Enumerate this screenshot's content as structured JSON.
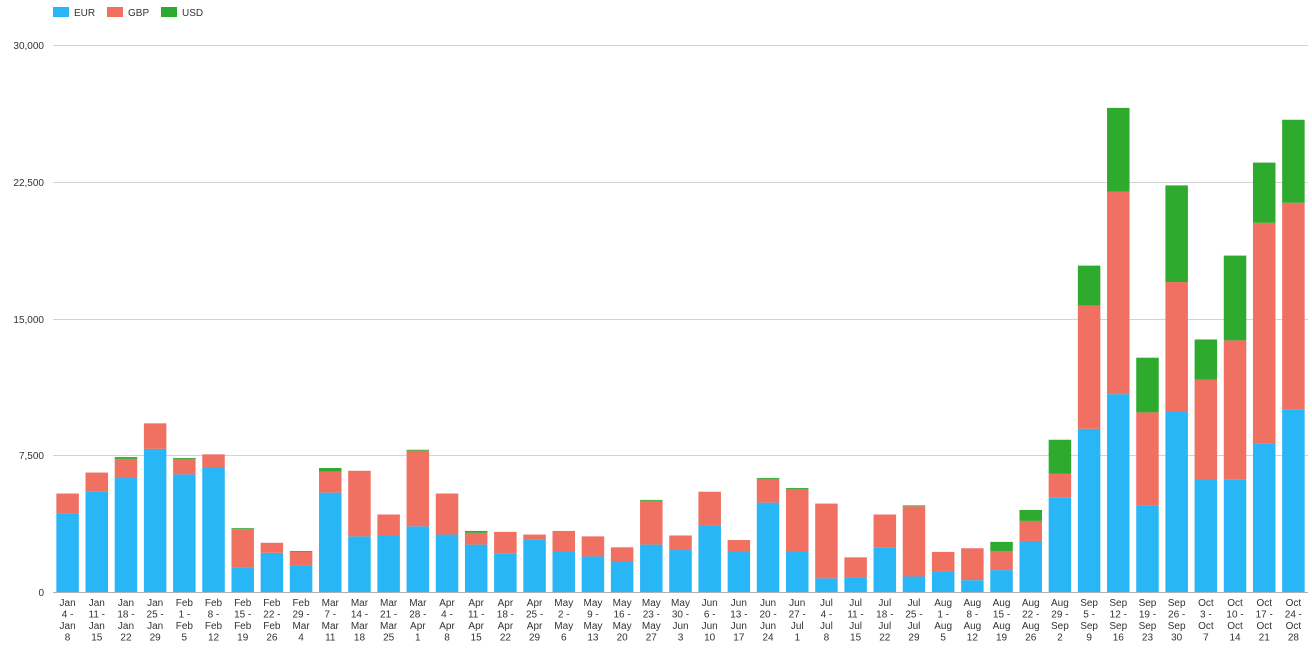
{
  "chart_data": {
    "type": "bar",
    "stacked": true,
    "title": "",
    "xlabel": "",
    "ylabel": "",
    "ylim": [
      0,
      30000
    ],
    "y_ticks": [
      "0",
      "7,500",
      "15,000",
      "22,500",
      "30,000"
    ],
    "y_tick_values": [
      0,
      7500,
      15000,
      22500,
      30000
    ],
    "grid": true,
    "legend_position": "top-left",
    "categories": [
      "Jan 4 - Jan 8",
      "Jan 11 - Jan 15",
      "Jan 18 - Jan 22",
      "Jan 25 - Jan 29",
      "Feb 1 - Feb 5",
      "Feb 8 - Feb 12",
      "Feb 15 - Feb 19",
      "Feb 22 - Feb 26",
      "Feb 29 - Mar 4",
      "Mar 7 - Mar 11",
      "Mar 14 - Mar 18",
      "Mar 21 - Mar 25",
      "Mar 28 - Apr 1",
      "Apr 4 - Apr 8",
      "Apr 11 - Apr 15",
      "Apr 18 - Apr 22",
      "Apr 25 - Apr 29",
      "May 2 - May 6",
      "May 9 - May 13",
      "May 16 - May 20",
      "May 23 - May 27",
      "May 30 - Jun 3",
      "Jun 6 - Jun 10",
      "Jun 13 - Jun 17",
      "Jun 20 - Jun 24",
      "Jun 27 - Jul 1",
      "Jul 4 - Jul 8",
      "Jul 11 - Jul 15",
      "Jul 18 - Jul 22",
      "Jul 25 - Jul 29",
      "Aug 1 - Aug 5",
      "Aug 8 - Aug 12",
      "Aug 15 - Aug 19",
      "Aug 22 - Aug 26",
      "Aug 29 - Sep 2",
      "Sep 5 - Sep 9",
      "Sep 12 - Sep 16",
      "Sep 19 - Sep 23",
      "Sep 26 - Sep 30",
      "Oct 3 - Oct 7",
      "Oct 10 - Oct 14",
      "Oct 17 - Oct 21",
      "Oct 24 - Oct 28"
    ],
    "category_lines": [
      [
        "Jan",
        "4 -",
        "Jan",
        "8"
      ],
      [
        "Jan",
        "11 -",
        "Jan",
        "15"
      ],
      [
        "Jan",
        "18 -",
        "Jan",
        "22"
      ],
      [
        "Jan",
        "25 -",
        "Jan",
        "29"
      ],
      [
        "Feb",
        "1 -",
        "Feb",
        "5"
      ],
      [
        "Feb",
        "8 -",
        "Feb",
        "12"
      ],
      [
        "Feb",
        "15 -",
        "Feb",
        "19"
      ],
      [
        "Feb",
        "22 -",
        "Feb",
        "26"
      ],
      [
        "Feb",
        "29 -",
        "Mar",
        "4"
      ],
      [
        "Mar",
        "7 -",
        "Mar",
        "11"
      ],
      [
        "Mar",
        "14 -",
        "Mar",
        "18"
      ],
      [
        "Mar",
        "21 -",
        "Mar",
        "25"
      ],
      [
        "Mar",
        "28 -",
        "Apr",
        "1"
      ],
      [
        "Apr",
        "4 -",
        "Apr",
        "8"
      ],
      [
        "Apr",
        "11 -",
        "Apr",
        "15"
      ],
      [
        "Apr",
        "18 -",
        "Apr",
        "22"
      ],
      [
        "Apr",
        "25 -",
        "Apr",
        "29"
      ],
      [
        "May",
        "2 -",
        "May",
        "6"
      ],
      [
        "May",
        "9 -",
        "May",
        "13"
      ],
      [
        "May",
        "16 -",
        "May",
        "20"
      ],
      [
        "May",
        "23 -",
        "May",
        "27"
      ],
      [
        "May",
        "30 -",
        "Jun",
        "3"
      ],
      [
        "Jun",
        "6 -",
        "Jun",
        "10"
      ],
      [
        "Jun",
        "13 -",
        "Jun",
        "17"
      ],
      [
        "Jun",
        "20 -",
        "Jun",
        "24"
      ],
      [
        "Jun",
        "27 -",
        "Jul",
        "1"
      ],
      [
        "Jul",
        "4 -",
        "Jul",
        "8"
      ],
      [
        "Jul",
        "11 -",
        "Jul",
        "15"
      ],
      [
        "Jul",
        "18 -",
        "Jul",
        "22"
      ],
      [
        "Jul",
        "25 -",
        "Jul",
        "29"
      ],
      [
        "Aug",
        "1 -",
        "Aug",
        "5"
      ],
      [
        "Aug",
        "8 -",
        "Aug",
        "12"
      ],
      [
        "Aug",
        "15 -",
        "Aug",
        "19"
      ],
      [
        "Aug",
        "22 -",
        "Aug",
        "26"
      ],
      [
        "Aug",
        "29 -",
        "Sep",
        "2"
      ],
      [
        "Sep",
        "5 -",
        "Sep",
        "9"
      ],
      [
        "Sep",
        "12 -",
        "Sep",
        "16"
      ],
      [
        "Sep",
        "19 -",
        "Sep",
        "23"
      ],
      [
        "Sep",
        "26 -",
        "Sep",
        "30"
      ],
      [
        "Oct",
        "3 -",
        "Oct",
        "7"
      ],
      [
        "Oct",
        "10 -",
        "Oct",
        "14"
      ],
      [
        "Oct",
        "17 -",
        "Oct",
        "21"
      ],
      [
        "Oct",
        "24 -",
        "Oct",
        "28"
      ]
    ],
    "series": [
      {
        "name": "EUR",
        "color": "#29b6f6",
        "values": [
          4300,
          5500,
          6250,
          7850,
          6450,
          6800,
          1350,
          2150,
          1450,
          5450,
          3050,
          3100,
          3600,
          3150,
          2600,
          2100,
          2900,
          2250,
          1950,
          1700,
          2600,
          2300,
          3650,
          2250,
          4900,
          2250,
          750,
          800,
          2450,
          850,
          1100,
          650,
          1200,
          2800,
          5200,
          8950,
          10850,
          4750,
          9900,
          6200,
          6150,
          8150,
          10000
        ]
      },
      {
        "name": "GBP",
        "color": "#f07062",
        "values": [
          1100,
          1050,
          1050,
          1400,
          850,
          750,
          2100,
          550,
          750,
          1150,
          3600,
          1150,
          4150,
          2250,
          650,
          1200,
          250,
          1100,
          1100,
          750,
          2400,
          800,
          1850,
          600,
          1300,
          3400,
          4100,
          1100,
          1800,
          3850,
          1100,
          1750,
          1050,
          1100,
          1300,
          6750,
          11100,
          5100,
          7100,
          5450,
          7650,
          12100,
          11350
        ]
      },
      {
        "name": "USD",
        "color": "#2eab2e",
        "values": [
          0,
          0,
          100,
          0,
          50,
          0,
          50,
          0,
          50,
          200,
          0,
          0,
          50,
          0,
          100,
          0,
          0,
          0,
          0,
          0,
          50,
          0,
          0,
          0,
          50,
          50,
          0,
          0,
          0,
          50,
          0,
          0,
          500,
          600,
          1850,
          2200,
          4600,
          3000,
          5300,
          2200,
          4650,
          3300,
          4550
        ]
      }
    ]
  }
}
